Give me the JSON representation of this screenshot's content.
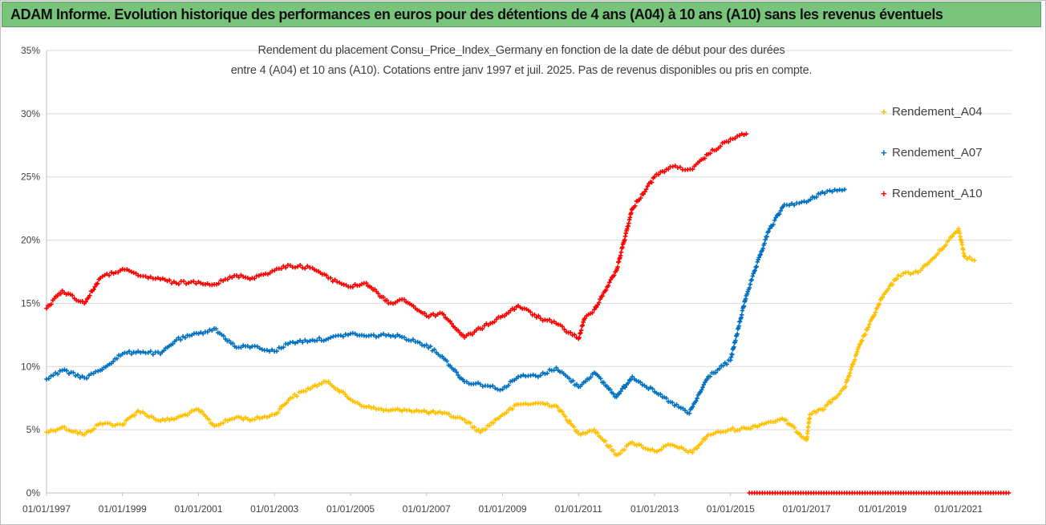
{
  "header": {
    "title": "ADAM Informe. Evolution historique des performances en euros pour des détentions de 4 ans (A04) à 10 ans (A10) sans les revenus éventuels"
  },
  "chart_data": {
    "type": "scatter",
    "title_line1": "Rendement du placement Consu_Price_Index_Germany en fonction de la date de début pour des durées",
    "title_line2": "entre 4 (A04) et 10 ans (A10). Cotations entre janv 1997 et juil. 2025. Pas de revenus disponibles ou pris en compte.",
    "xlabel": "",
    "ylabel": "",
    "x_axis": {
      "type": "date",
      "range": [
        "1997-01-01",
        "2022-06-01"
      ],
      "tick_labels": [
        "01/01/1997",
        "01/01/1999",
        "01/01/2001",
        "01/01/2003",
        "01/01/2005",
        "01/01/2007",
        "01/01/2009",
        "01/01/2011",
        "01/01/2013",
        "01/01/2015",
        "01/01/2017",
        "01/01/2019",
        "01/01/2021"
      ]
    },
    "y_axis": {
      "range": [
        0,
        0.35
      ],
      "ticks": [
        0,
        0.05,
        0.1,
        0.15,
        0.2,
        0.25,
        0.3,
        0.35
      ],
      "tick_labels": [
        "0%",
        "5%",
        "10%",
        "15%",
        "20%",
        "25%",
        "30%",
        "35%"
      ],
      "grid": true
    },
    "legend_position": "right",
    "marker": "+",
    "series": [
      {
        "name": "Rendement_A04",
        "color": "#ffc000",
        "points": [
          [
            "1997-01-01",
            0.048
          ],
          [
            "1997-06-01",
            0.052
          ],
          [
            "1998-01-01",
            0.046
          ],
          [
            "1998-06-01",
            0.055
          ],
          [
            "1999-01-01",
            0.054
          ],
          [
            "1999-06-01",
            0.065
          ],
          [
            "2000-01-01",
            0.057
          ],
          [
            "2000-06-01",
            0.059
          ],
          [
            "2001-01-01",
            0.066
          ],
          [
            "2001-06-01",
            0.053
          ],
          [
            "2002-01-01",
            0.06
          ],
          [
            "2002-06-01",
            0.058
          ],
          [
            "2003-01-01",
            0.062
          ],
          [
            "2003-06-01",
            0.075
          ],
          [
            "2004-01-01",
            0.084
          ],
          [
            "2004-06-01",
            0.088
          ],
          [
            "2005-01-01",
            0.074
          ],
          [
            "2005-06-01",
            0.068
          ],
          [
            "2006-01-01",
            0.065
          ],
          [
            "2006-06-01",
            0.066
          ],
          [
            "2007-01-01",
            0.064
          ],
          [
            "2007-06-01",
            0.063
          ],
          [
            "2008-01-01",
            0.058
          ],
          [
            "2008-06-01",
            0.048
          ],
          [
            "2009-01-01",
            0.062
          ],
          [
            "2009-06-01",
            0.07
          ],
          [
            "2010-01-01",
            0.071
          ],
          [
            "2010-06-01",
            0.069
          ],
          [
            "2011-01-01",
            0.047
          ],
          [
            "2011-06-01",
            0.05
          ],
          [
            "2012-01-01",
            0.03
          ],
          [
            "2012-06-01",
            0.04
          ],
          [
            "2013-01-01",
            0.033
          ],
          [
            "2013-06-01",
            0.038
          ],
          [
            "2014-01-01",
            0.032
          ],
          [
            "2014-06-01",
            0.046
          ],
          [
            "2015-01-01",
            0.05
          ],
          [
            "2015-06-01",
            0.051
          ],
          [
            "2016-01-01",
            0.056
          ],
          [
            "2016-06-01",
            0.058
          ],
          [
            "2017-01-01",
            0.042
          ],
          [
            "2017-02-01",
            0.062
          ],
          [
            "2017-06-01",
            0.066
          ],
          [
            "2018-01-01",
            0.083
          ],
          [
            "2018-06-01",
            0.118
          ],
          [
            "2019-01-01",
            0.155
          ],
          [
            "2019-06-01",
            0.172
          ],
          [
            "2020-01-01",
            0.176
          ],
          [
            "2020-06-01",
            0.188
          ],
          [
            "2021-01-01",
            0.209
          ],
          [
            "2021-03-01",
            0.187
          ],
          [
            "2021-06-01",
            0.184
          ]
        ]
      },
      {
        "name": "Rendement_A07",
        "color": "#0070c0",
        "points": [
          [
            "1997-01-01",
            0.09
          ],
          [
            "1997-06-01",
            0.097
          ],
          [
            "1998-01-01",
            0.091
          ],
          [
            "1998-06-01",
            0.097
          ],
          [
            "1999-01-01",
            0.11
          ],
          [
            "1999-06-01",
            0.112
          ],
          [
            "2000-01-01",
            0.11
          ],
          [
            "2000-06-01",
            0.121
          ],
          [
            "2001-01-01",
            0.126
          ],
          [
            "2001-06-01",
            0.13
          ],
          [
            "2002-01-01",
            0.115
          ],
          [
            "2002-06-01",
            0.116
          ],
          [
            "2003-01-01",
            0.112
          ],
          [
            "2003-06-01",
            0.119
          ],
          [
            "2004-01-01",
            0.121
          ],
          [
            "2004-06-01",
            0.122
          ],
          [
            "2005-01-01",
            0.126
          ],
          [
            "2005-06-01",
            0.124
          ],
          [
            "2006-01-01",
            0.125
          ],
          [
            "2006-06-01",
            0.123
          ],
          [
            "2007-01-01",
            0.117
          ],
          [
            "2007-06-01",
            0.108
          ],
          [
            "2008-01-01",
            0.088
          ],
          [
            "2008-06-01",
            0.086
          ],
          [
            "2009-01-01",
            0.082
          ],
          [
            "2009-06-01",
            0.092
          ],
          [
            "2010-01-01",
            0.093
          ],
          [
            "2010-06-01",
            0.099
          ],
          [
            "2011-01-01",
            0.084
          ],
          [
            "2011-06-01",
            0.095
          ],
          [
            "2012-01-01",
            0.076
          ],
          [
            "2012-06-01",
            0.092
          ],
          [
            "2013-01-01",
            0.08
          ],
          [
            "2013-06-01",
            0.072
          ],
          [
            "2013-12-01",
            0.063
          ],
          [
            "2014-06-01",
            0.092
          ],
          [
            "2015-01-01",
            0.105
          ],
          [
            "2015-06-01",
            0.156
          ],
          [
            "2016-01-01",
            0.207
          ],
          [
            "2016-06-01",
            0.228
          ],
          [
            "2017-01-01",
            0.23
          ],
          [
            "2017-06-01",
            0.238
          ],
          [
            "2018-01-01",
            0.24
          ]
        ]
      },
      {
        "name": "Rendement_A10",
        "color": "#ff0000",
        "points": [
          [
            "1997-01-01",
            0.146
          ],
          [
            "1997-06-01",
            0.16
          ],
          [
            "1998-01-01",
            0.15
          ],
          [
            "1998-06-01",
            0.17
          ],
          [
            "1999-01-01",
            0.177
          ],
          [
            "1999-06-01",
            0.172
          ],
          [
            "2000-01-01",
            0.169
          ],
          [
            "2000-06-01",
            0.166
          ],
          [
            "2001-01-01",
            0.167
          ],
          [
            "2001-06-01",
            0.165
          ],
          [
            "2002-01-01",
            0.172
          ],
          [
            "2002-06-01",
            0.17
          ],
          [
            "2003-01-01",
            0.176
          ],
          [
            "2003-06-01",
            0.18
          ],
          [
            "2004-01-01",
            0.178
          ],
          [
            "2004-06-01",
            0.17
          ],
          [
            "2005-01-01",
            0.163
          ],
          [
            "2005-06-01",
            0.166
          ],
          [
            "2006-01-01",
            0.15
          ],
          [
            "2006-06-01",
            0.153
          ],
          [
            "2007-01-01",
            0.14
          ],
          [
            "2007-06-01",
            0.142
          ],
          [
            "2008-01-01",
            0.123
          ],
          [
            "2008-06-01",
            0.13
          ],
          [
            "2009-01-01",
            0.14
          ],
          [
            "2009-06-01",
            0.148
          ],
          [
            "2010-01-01",
            0.138
          ],
          [
            "2010-06-01",
            0.134
          ],
          [
            "2011-01-01",
            0.122
          ],
          [
            "2011-03-01",
            0.138
          ],
          [
            "2011-06-01",
            0.145
          ],
          [
            "2012-01-01",
            0.176
          ],
          [
            "2012-06-01",
            0.225
          ],
          [
            "2013-01-01",
            0.25
          ],
          [
            "2013-06-01",
            0.258
          ],
          [
            "2014-01-01",
            0.256
          ],
          [
            "2014-06-01",
            0.268
          ],
          [
            "2015-01-01",
            0.28
          ],
          [
            "2015-06-01",
            0.284
          ]
        ]
      }
    ],
    "extra_marks": [
      {
        "series": "Rendement_A10",
        "note": "row of markers at 0% level",
        "x_range": [
          "2015-07-01",
          "2022-05-01"
        ],
        "y": 0
      }
    ]
  }
}
